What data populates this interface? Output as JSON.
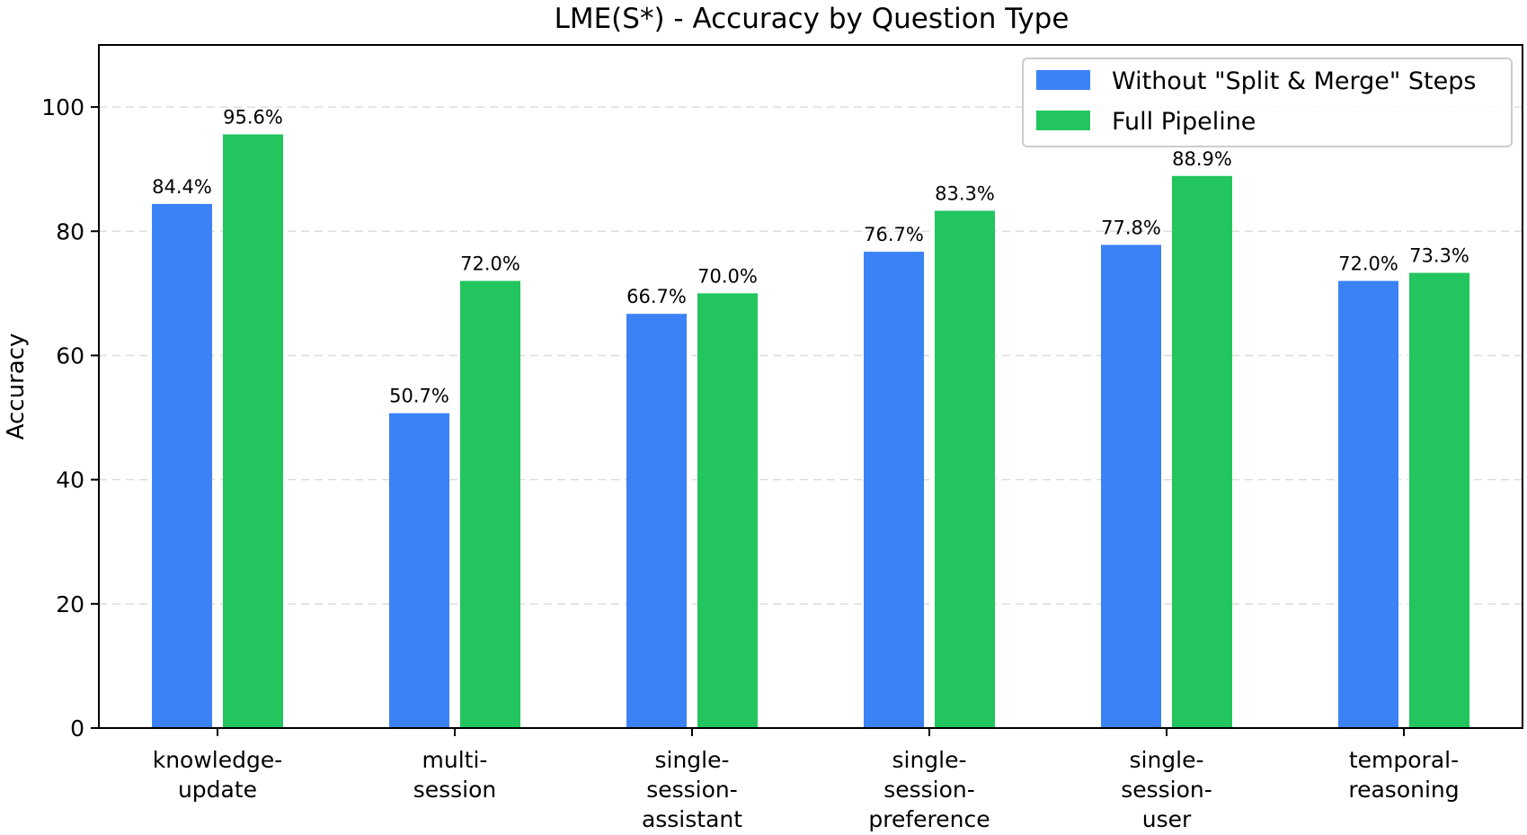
{
  "chart_data": {
    "type": "bar",
    "title": "LME(S*) - Accuracy by Question Type",
    "xlabel": "",
    "ylabel": "Accuracy",
    "ylim": [
      0,
      110
    ],
    "yticks": [
      "0",
      "20",
      "40",
      "60",
      "80",
      "100"
    ],
    "grid": "horizontal, dashed",
    "legend_position": "top-right",
    "categories": [
      [
        "knowledge-",
        "update"
      ],
      [
        "multi-",
        "session"
      ],
      [
        "single-",
        "session-",
        "assistant"
      ],
      [
        "single-",
        "session-",
        "preference"
      ],
      [
        "single-",
        "session-",
        "user"
      ],
      [
        "temporal-",
        "reasoning"
      ]
    ],
    "series": [
      {
        "name": "Without \"Split & Merge\" Steps",
        "color": "#3b82f6",
        "values": [
          84.4,
          50.7,
          66.7,
          76.7,
          77.8,
          72.0
        ],
        "labels": [
          "84.4%",
          "50.7%",
          "66.7%",
          "76.7%",
          "77.8%",
          "72.0%"
        ]
      },
      {
        "name": "Full Pipeline",
        "color": "#22c55e",
        "values": [
          95.6,
          72.0,
          70.0,
          83.3,
          88.9,
          73.3
        ],
        "labels": [
          "95.6%",
          "72.0%",
          "70.0%",
          "83.3%",
          "88.9%",
          "73.3%"
        ]
      }
    ]
  }
}
